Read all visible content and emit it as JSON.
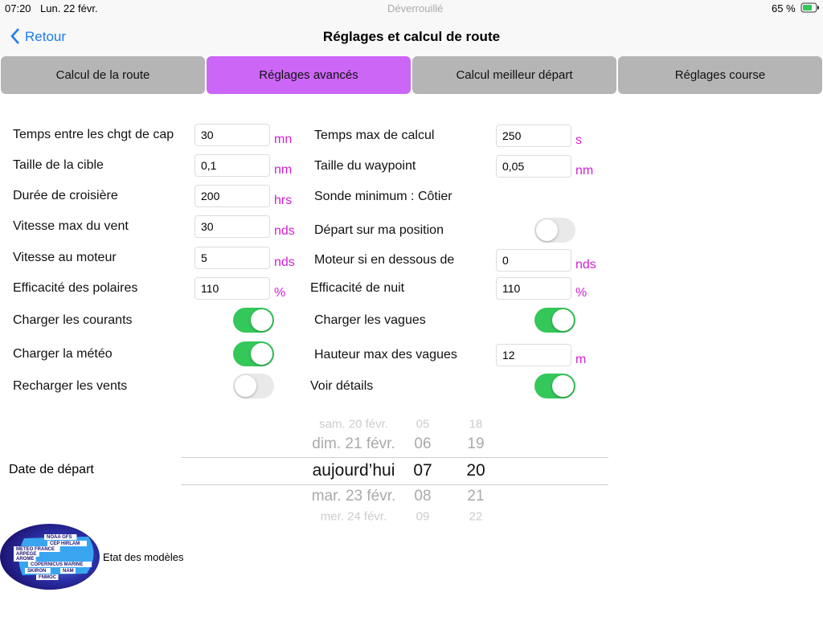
{
  "status": {
    "time": "07:20",
    "date": "Lun. 22 févr.",
    "lock": "Déverrouillé",
    "battery": "65 %"
  },
  "nav": {
    "back": "Retour",
    "title": "Réglages et calcul de route"
  },
  "tabs": {
    "labels": [
      "Calcul de la route",
      "Réglages avancés",
      "Calcul meilleur départ",
      "Réglages course"
    ],
    "active": 1
  },
  "left": [
    {
      "label": "Temps entre les chgt de cap",
      "value": "30",
      "unit": "mn"
    },
    {
      "label": "Taille de la cible",
      "value": "0,1",
      "unit": "nm"
    },
    {
      "label": "Durée de croisière",
      "value": "200",
      "unit": "hrs"
    },
    {
      "label": "Vitesse max du vent",
      "value": "30",
      "unit": "nds"
    },
    {
      "label": "Vitesse au moteur",
      "value": "5",
      "unit": "nds"
    },
    {
      "label": "Efficacité des polaires",
      "value": "110",
      "unit": "%"
    },
    {
      "label": "Charger les courants",
      "on": true
    },
    {
      "label": "Charger la météo",
      "on": true
    },
    {
      "label": "Recharger les vents",
      "on": false
    }
  ],
  "right": [
    {
      "label": "Temps max de calcul",
      "value": "250",
      "unit": "s"
    },
    {
      "label": "Taille du waypoint",
      "value": "0,05",
      "unit": "nm"
    },
    {
      "label": "Sonde minimum : Côtier"
    },
    {
      "label": "Départ sur ma position",
      "on": false
    },
    {
      "label": "Moteur si en dessous de",
      "value": "0",
      "unit": "nds"
    },
    {
      "label": "Efficacité de nuit",
      "value": "110",
      "unit": "%"
    },
    {
      "label": "Charger les vagues",
      "on": true
    },
    {
      "label": "Hauteur max des vagues",
      "value": "12",
      "unit": "m"
    },
    {
      "label": "Voir détails",
      "on": true
    }
  ],
  "date_label": "Date de départ",
  "picker": {
    "rows": [
      [
        "sam. 20 févr.",
        "05",
        "18"
      ],
      [
        "dim. 21 févr.",
        "06",
        "19"
      ],
      [
        "aujourd’hui",
        "07",
        "20"
      ],
      [
        "mar. 23 févr.",
        "08",
        "21"
      ],
      [
        "mer. 24 févr.",
        "09",
        "22"
      ]
    ],
    "selected": 2
  },
  "models": {
    "logo": [
      "NOAA GFS",
      "CEP HIRLAM",
      "METEO FRANCE",
      "ARPEGE",
      "AROME",
      "COPERNICUS MARINE",
      "SKIRON",
      "NAM",
      "FNMOC"
    ],
    "label": "Etat des modèles"
  }
}
